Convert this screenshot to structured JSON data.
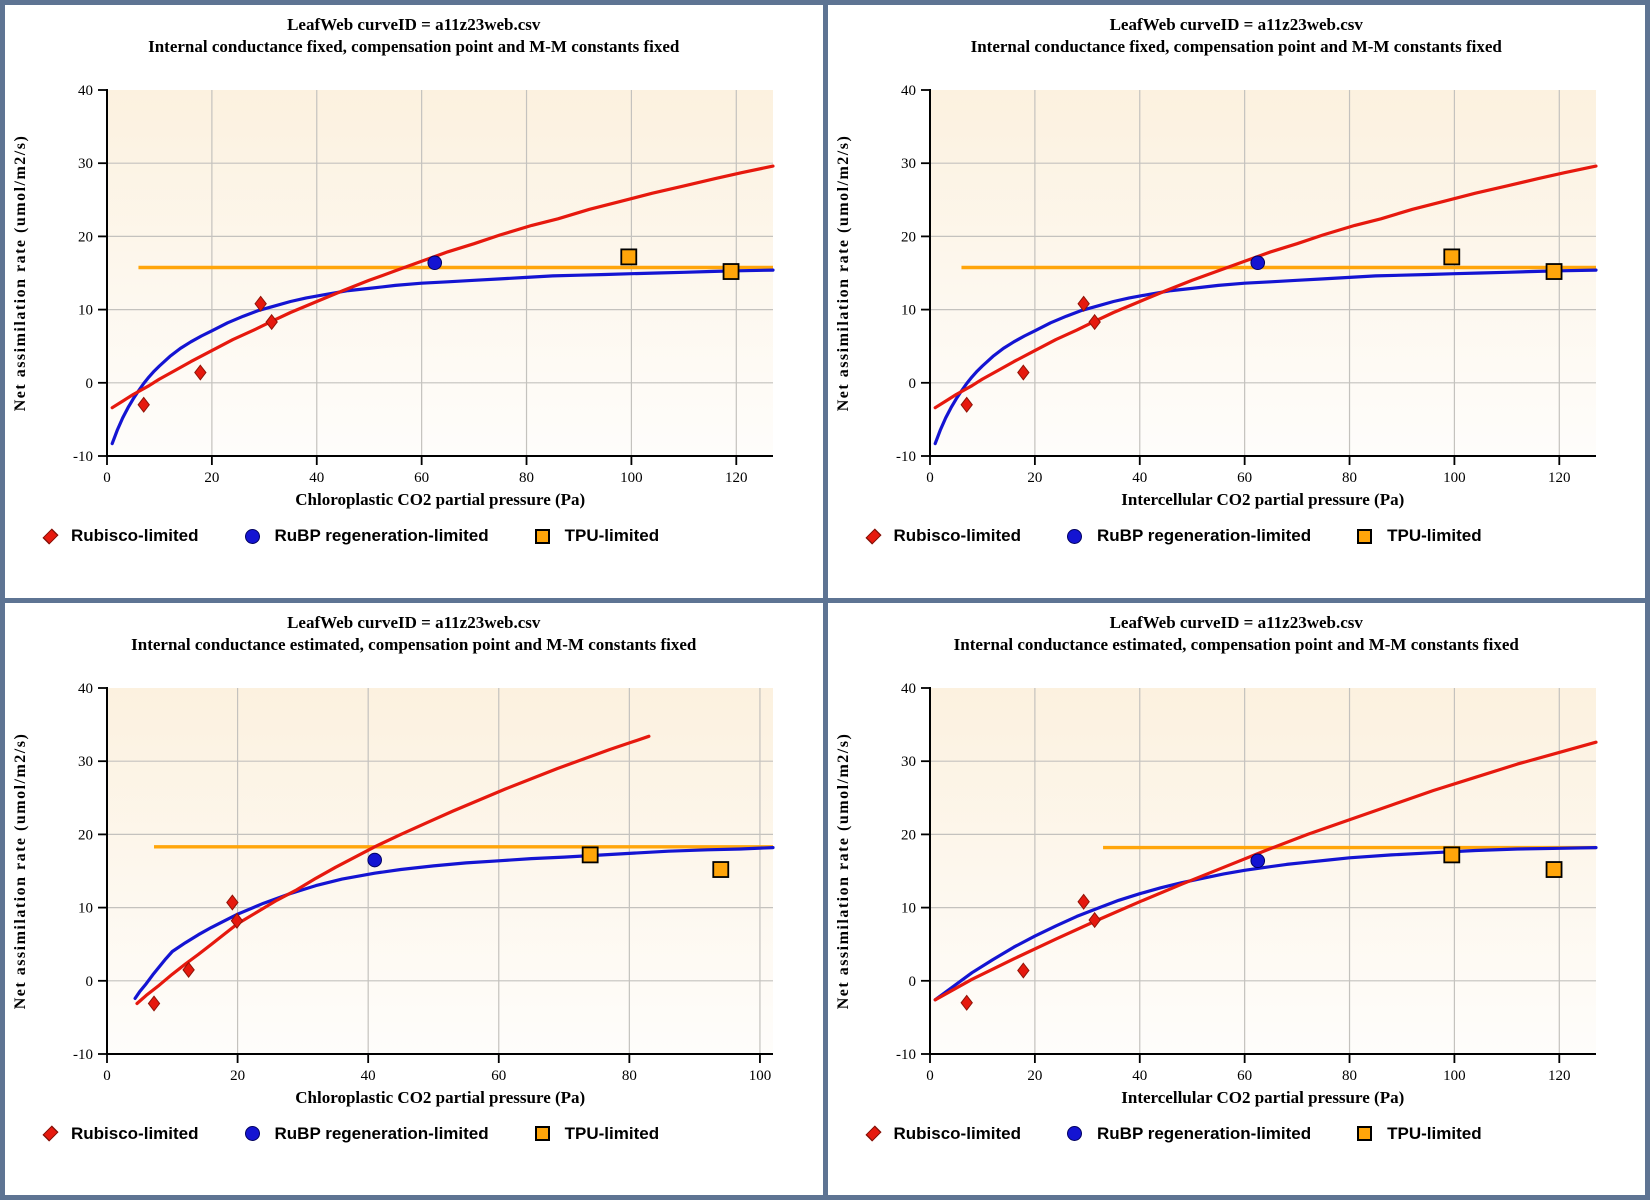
{
  "window": {
    "frame_color": "#5E7493",
    "panel_bg": "#FFFFFF"
  },
  "colors": {
    "red": "#E6190E",
    "blue": "#1414D2",
    "orange": "#FFA50A",
    "grid": "#C4C2BE",
    "axis": "#000000",
    "plot_bg_top": "#FCF1DF",
    "plot_bg_bottom": "#FEFDFB",
    "marker_diamond_edge": "#8F1408",
    "marker_circle_edge": "#000060",
    "marker_square_edge": "#000000"
  },
  "legend": {
    "items": [
      {
        "label": "Rubisco-limited",
        "marker": "diamond-icon",
        "color": "#E6190E"
      },
      {
        "label": "RuBP regeneration-limited",
        "marker": "circle-icon",
        "color": "#1414D2"
      },
      {
        "label": "TPU-limited",
        "marker": "square-icon",
        "color": "#FFA50A"
      }
    ]
  },
  "chart_data": [
    {
      "type": "scatter",
      "title": "LeafWeb curveID = a11z23web.csv",
      "subtitle": "Internal conductance fixed, compensation point and M-M constants fixed",
      "xlabel": "Chloroplastic CO2 partial pressure (Pa)",
      "ylabel": "Net assimilation rate (umol/m2/s)",
      "xlim": [
        0,
        127
      ],
      "ylim": [
        -10,
        40
      ],
      "x_ticks": [
        0,
        20,
        40,
        60,
        80,
        100,
        120
      ],
      "y_ticks": [
        -10,
        0,
        10,
        20,
        30,
        40
      ],
      "grid": true,
      "points": {
        "rubisco": [
          [
            7,
            -3.0
          ],
          [
            17.8,
            1.4
          ],
          [
            29.3,
            10.8
          ],
          [
            31.4,
            8.3
          ]
        ],
        "rubp": [
          [
            62.5,
            16.4
          ]
        ],
        "tpu": [
          [
            99.5,
            17.2
          ],
          [
            119,
            15.2
          ]
        ]
      },
      "tpu_line": {
        "y": 15.75,
        "x_start": 6,
        "x_end": 127
      },
      "curves": {
        "rubisco": [
          [
            1,
            -3.4
          ],
          [
            3,
            -2.5
          ],
          [
            5,
            -1.6
          ],
          [
            8,
            -0.4
          ],
          [
            10,
            0.5
          ],
          [
            13,
            1.7
          ],
          [
            16,
            2.9
          ],
          [
            20,
            4.4
          ],
          [
            24,
            5.9
          ],
          [
            28,
            7.2
          ],
          [
            31.4,
            8.4
          ],
          [
            35,
            9.6
          ],
          [
            40,
            11.1
          ],
          [
            45,
            12.6
          ],
          [
            50,
            14.0
          ],
          [
            55,
            15.3
          ],
          [
            60,
            16.6
          ],
          [
            65,
            17.9
          ],
          [
            70,
            19.0
          ],
          [
            75,
            20.2
          ],
          [
            81,
            21.5
          ],
          [
            86,
            22.4
          ],
          [
            92,
            23.7
          ],
          [
            98,
            24.8
          ],
          [
            104,
            25.9
          ],
          [
            110,
            26.9
          ],
          [
            116,
            27.9
          ],
          [
            121,
            28.7
          ],
          [
            127,
            29.6
          ]
        ],
        "rubp": [
          [
            1,
            -8.3
          ],
          [
            2,
            -6.4
          ],
          [
            3,
            -4.8
          ],
          [
            4,
            -3.4
          ],
          [
            5,
            -2.2
          ],
          [
            6,
            -1.1
          ],
          [
            7,
            -0.1
          ],
          [
            8,
            0.8
          ],
          [
            9,
            1.6
          ],
          [
            10,
            2.3
          ],
          [
            12,
            3.6
          ],
          [
            14,
            4.7
          ],
          [
            16,
            5.6
          ],
          [
            18,
            6.4
          ],
          [
            20,
            7.1
          ],
          [
            23,
            8.2
          ],
          [
            26,
            9.1
          ],
          [
            29,
            9.9
          ],
          [
            32,
            10.5
          ],
          [
            35,
            11.1
          ],
          [
            38,
            11.6
          ],
          [
            42,
            12.1
          ],
          [
            46,
            12.6
          ],
          [
            50,
            12.9
          ],
          [
            55,
            13.3
          ],
          [
            60,
            13.6
          ],
          [
            65,
            13.8
          ],
          [
            70,
            14.0
          ],
          [
            75,
            14.2
          ],
          [
            80,
            14.4
          ],
          [
            85,
            14.6
          ],
          [
            90,
            14.7
          ],
          [
            95,
            14.8
          ],
          [
            100,
            14.9
          ],
          [
            105,
            15.0
          ],
          [
            110,
            15.1
          ],
          [
            115,
            15.2
          ],
          [
            120,
            15.3
          ],
          [
            127,
            15.4
          ]
        ]
      }
    },
    {
      "type": "scatter",
      "title": "LeafWeb curveID = a11z23web.csv",
      "subtitle": "Internal conductance fixed, compensation point and M-M constants fixed",
      "xlabel": "Intercellular CO2 partial pressure (Pa)",
      "ylabel": "Net assimilation rate (umol/m2/s)",
      "xlim": [
        0,
        127
      ],
      "ylim": [
        -10,
        40
      ],
      "x_ticks": [
        0,
        20,
        40,
        60,
        80,
        100,
        120
      ],
      "y_ticks": [
        -10,
        0,
        10,
        20,
        30,
        40
      ],
      "grid": true,
      "points": {
        "rubisco": [
          [
            7,
            -3.0
          ],
          [
            17.8,
            1.4
          ],
          [
            29.3,
            10.8
          ],
          [
            31.4,
            8.3
          ]
        ],
        "rubp": [
          [
            62.5,
            16.4
          ]
        ],
        "tpu": [
          [
            99.5,
            17.2
          ],
          [
            119,
            15.2
          ]
        ]
      },
      "tpu_line": {
        "y": 15.75,
        "x_start": 6,
        "x_end": 127
      },
      "curves": {
        "rubisco": [
          [
            1,
            -3.4
          ],
          [
            3,
            -2.5
          ],
          [
            5,
            -1.6
          ],
          [
            8,
            -0.4
          ],
          [
            10,
            0.5
          ],
          [
            13,
            1.7
          ],
          [
            16,
            2.9
          ],
          [
            20,
            4.4
          ],
          [
            24,
            5.9
          ],
          [
            28,
            7.2
          ],
          [
            31.4,
            8.4
          ],
          [
            35,
            9.6
          ],
          [
            40,
            11.1
          ],
          [
            45,
            12.6
          ],
          [
            50,
            14.0
          ],
          [
            55,
            15.3
          ],
          [
            60,
            16.6
          ],
          [
            65,
            17.9
          ],
          [
            70,
            19.0
          ],
          [
            75,
            20.2
          ],
          [
            81,
            21.5
          ],
          [
            86,
            22.4
          ],
          [
            92,
            23.7
          ],
          [
            98,
            24.8
          ],
          [
            104,
            25.9
          ],
          [
            110,
            26.9
          ],
          [
            116,
            27.9
          ],
          [
            121,
            28.7
          ],
          [
            127,
            29.6
          ]
        ],
        "rubp": [
          [
            1,
            -8.3
          ],
          [
            2,
            -6.4
          ],
          [
            3,
            -4.8
          ],
          [
            4,
            -3.4
          ],
          [
            5,
            -2.2
          ],
          [
            6,
            -1.1
          ],
          [
            7,
            -0.1
          ],
          [
            8,
            0.8
          ],
          [
            9,
            1.6
          ],
          [
            10,
            2.3
          ],
          [
            12,
            3.6
          ],
          [
            14,
            4.7
          ],
          [
            16,
            5.6
          ],
          [
            18,
            6.4
          ],
          [
            20,
            7.1
          ],
          [
            23,
            8.2
          ],
          [
            26,
            9.1
          ],
          [
            29,
            9.9
          ],
          [
            32,
            10.5
          ],
          [
            35,
            11.1
          ],
          [
            38,
            11.6
          ],
          [
            42,
            12.1
          ],
          [
            46,
            12.6
          ],
          [
            50,
            12.9
          ],
          [
            55,
            13.3
          ],
          [
            60,
            13.6
          ],
          [
            65,
            13.8
          ],
          [
            70,
            14.0
          ],
          [
            75,
            14.2
          ],
          [
            80,
            14.4
          ],
          [
            85,
            14.6
          ],
          [
            90,
            14.7
          ],
          [
            95,
            14.8
          ],
          [
            100,
            14.9
          ],
          [
            105,
            15.0
          ],
          [
            110,
            15.1
          ],
          [
            115,
            15.2
          ],
          [
            120,
            15.3
          ],
          [
            127,
            15.4
          ]
        ]
      }
    },
    {
      "type": "scatter",
      "title": "LeafWeb curveID = a11z23web.csv",
      "subtitle": "Internal conductance estimated, compensation point and M-M constants fixed",
      "xlabel": "Chloroplastic CO2 partial pressure (Pa)",
      "ylabel": "Net assimilation rate (umol/m2/s)",
      "xlim": [
        0,
        102
      ],
      "ylim": [
        -10,
        40
      ],
      "x_ticks": [
        0,
        20,
        40,
        60,
        80,
        100
      ],
      "y_ticks": [
        -10,
        0,
        10,
        20,
        30,
        40
      ],
      "grid": true,
      "points": {
        "rubisco": [
          [
            7.2,
            -3.1
          ],
          [
            12.5,
            1.5
          ],
          [
            19.2,
            10.7
          ],
          [
            19.9,
            8.2
          ]
        ],
        "rubp": [
          [
            41,
            16.5
          ]
        ],
        "tpu": [
          [
            74,
            17.2
          ],
          [
            94,
            15.2
          ]
        ]
      },
      "tpu_line": {
        "y": 18.3,
        "x_start": 7.2,
        "x_end": 102
      },
      "curves": {
        "rubisco": [
          [
            4.6,
            -3.1
          ],
          [
            6,
            -2.0
          ],
          [
            8,
            -0.6
          ],
          [
            10,
            0.9
          ],
          [
            12,
            2.3
          ],
          [
            14,
            3.6
          ],
          [
            16,
            5.0
          ],
          [
            18,
            6.4
          ],
          [
            20,
            7.8
          ],
          [
            23,
            9.4
          ],
          [
            26,
            11.0
          ],
          [
            29,
            12.4
          ],
          [
            32,
            14.0
          ],
          [
            35,
            15.5
          ],
          [
            38,
            16.9
          ],
          [
            41,
            18.3
          ],
          [
            45,
            20.0
          ],
          [
            49,
            21.6
          ],
          [
            53,
            23.2
          ],
          [
            57,
            24.7
          ],
          [
            61,
            26.2
          ],
          [
            65,
            27.6
          ],
          [
            69,
            29.0
          ],
          [
            73,
            30.3
          ],
          [
            77,
            31.6
          ],
          [
            80,
            32.5
          ],
          [
            83,
            33.4
          ]
        ],
        "rubp": [
          [
            4.3,
            -2.4
          ],
          [
            5,
            -1.5
          ],
          [
            6,
            -0.4
          ],
          [
            7,
            0.8
          ],
          [
            8,
            1.9
          ],
          [
            9,
            3.0
          ],
          [
            10,
            4.0
          ],
          [
            12,
            5.2
          ],
          [
            14,
            6.3
          ],
          [
            16,
            7.3
          ],
          [
            18,
            8.2
          ],
          [
            20,
            9.1
          ],
          [
            24,
            10.6
          ],
          [
            28,
            11.9
          ],
          [
            32,
            13.0
          ],
          [
            36,
            13.9
          ],
          [
            41,
            14.7
          ],
          [
            45,
            15.2
          ],
          [
            50,
            15.7
          ],
          [
            55,
            16.1
          ],
          [
            60,
            16.4
          ],
          [
            65,
            16.7
          ],
          [
            70,
            16.9
          ],
          [
            74,
            17.1
          ],
          [
            80,
            17.4
          ],
          [
            86,
            17.7
          ],
          [
            92,
            17.9
          ],
          [
            97,
            18.0
          ],
          [
            102,
            18.2
          ]
        ]
      }
    },
    {
      "type": "scatter",
      "title": "LeafWeb curveID = a11z23web.csv",
      "subtitle": "Internal conductance estimated, compensation point and M-M constants fixed",
      "xlabel": "Intercellular CO2 partial pressure (Pa)",
      "ylabel": "Net assimilation rate (umol/m2/s)",
      "xlim": [
        0,
        127
      ],
      "ylim": [
        -10,
        40
      ],
      "x_ticks": [
        0,
        20,
        40,
        60,
        80,
        100,
        120
      ],
      "y_ticks": [
        -10,
        0,
        10,
        20,
        30,
        40
      ],
      "grid": true,
      "points": {
        "rubisco": [
          [
            7,
            -3.0
          ],
          [
            17.8,
            1.4
          ],
          [
            29.3,
            10.8
          ],
          [
            31.4,
            8.3
          ]
        ],
        "rubp": [
          [
            62.5,
            16.4
          ]
        ],
        "tpu": [
          [
            99.5,
            17.2
          ],
          [
            119,
            15.2
          ]
        ]
      },
      "tpu_line": {
        "y": 18.2,
        "x_start": 33,
        "x_end": 127
      },
      "curves": {
        "rubisco": [
          [
            1,
            -2.6
          ],
          [
            8,
            0.2
          ],
          [
            16,
            3.0
          ],
          [
            24,
            5.7
          ],
          [
            32,
            8.3
          ],
          [
            40,
            10.8
          ],
          [
            48,
            13.2
          ],
          [
            56,
            15.5
          ],
          [
            64,
            17.8
          ],
          [
            72,
            20.0
          ],
          [
            80,
            22.0
          ],
          [
            88,
            24.0
          ],
          [
            96,
            26.0
          ],
          [
            104,
            27.8
          ],
          [
            112,
            29.6
          ],
          [
            120,
            31.2
          ],
          [
            127,
            32.6
          ]
        ],
        "rubp": [
          [
            1,
            -2.6
          ],
          [
            4,
            -1.0
          ],
          [
            8,
            1.1
          ],
          [
            12,
            2.9
          ],
          [
            16,
            4.6
          ],
          [
            20,
            6.1
          ],
          [
            24,
            7.5
          ],
          [
            28,
            8.8
          ],
          [
            32,
            9.9
          ],
          [
            36,
            11.0
          ],
          [
            40,
            11.9
          ],
          [
            44,
            12.7
          ],
          [
            48,
            13.4
          ],
          [
            52,
            14.0
          ],
          [
            56,
            14.6
          ],
          [
            60,
            15.1
          ],
          [
            64,
            15.5
          ],
          [
            68,
            15.9
          ],
          [
            72,
            16.2
          ],
          [
            76,
            16.5
          ],
          [
            80,
            16.8
          ],
          [
            88,
            17.2
          ],
          [
            96,
            17.5
          ],
          [
            104,
            17.8
          ],
          [
            112,
            18.0
          ],
          [
            120,
            18.1
          ],
          [
            127,
            18.2
          ]
        ]
      }
    }
  ]
}
